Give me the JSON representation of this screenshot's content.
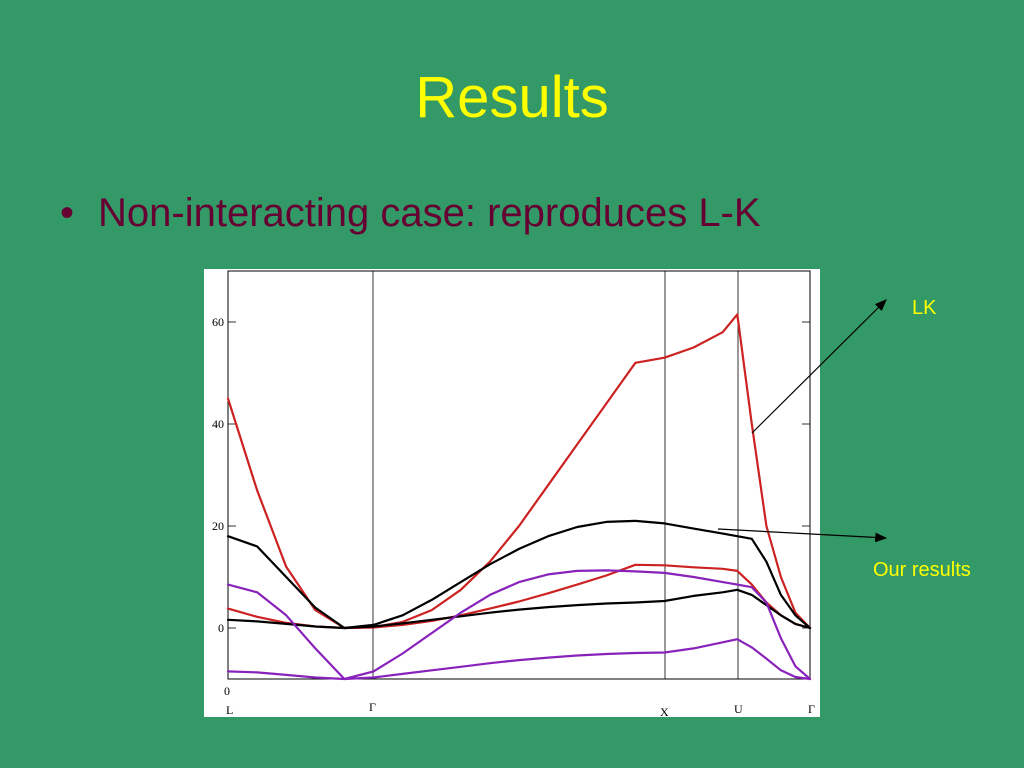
{
  "slide": {
    "title": "Results",
    "bullet_glyph": "•",
    "bullet_text": "Non-interacting case: reproduces L-K",
    "annotation_lk": "LK",
    "annotation_our": "Our results"
  },
  "chart_data": {
    "type": "line",
    "title": "",
    "xlabel": "",
    "ylabel": "",
    "xlim": [
      0,
      1
    ],
    "ylim": [
      -10,
      70
    ],
    "grid": false,
    "y_ticks": [
      0,
      20,
      40,
      60
    ],
    "extra_axis_label": "0",
    "x_point_labels": [
      "L",
      "Γ",
      "X",
      "U",
      "Γ"
    ],
    "series": [
      {
        "color": "#cc2222",
        "x": [
          0,
          0.05,
          0.1,
          0.15,
          0.2,
          0.25,
          0.3,
          0.35,
          0.4,
          0.45,
          0.5,
          0.55,
          0.6,
          0.65,
          0.7,
          0.75,
          0.8,
          0.85,
          0.875,
          0.9,
          0.925,
          0.95,
          0.975,
          1
        ],
        "y": [
          45,
          27,
          12,
          3.5,
          0,
          0.2,
          1.2,
          3.5,
          7.5,
          13,
          20,
          28,
          36,
          44,
          52,
          53,
          55,
          58,
          61.5,
          40,
          20,
          10,
          3,
          0
        ]
      },
      {
        "color": "#cc2222",
        "x": [
          0,
          0.05,
          0.1,
          0.15,
          0.2,
          0.25,
          0.3,
          0.35,
          0.4,
          0.45,
          0.5,
          0.55,
          0.6,
          0.65,
          0.7,
          0.75,
          0.8,
          0.85,
          0.875,
          0.9,
          0.925,
          0.95,
          0.975,
          1
        ],
        "y": [
          3.8,
          2.2,
          1,
          0.3,
          0,
          0.1,
          0.6,
          1.4,
          2.5,
          3.8,
          5.2,
          6.8,
          8.5,
          10.3,
          12.4,
          12.3,
          11.9,
          11.6,
          11.2,
          8.5,
          5,
          2.5,
          0.8,
          0
        ]
      },
      {
        "color": "#000000",
        "x": [
          0,
          0.05,
          0.1,
          0.15,
          0.2,
          0.25,
          0.3,
          0.35,
          0.4,
          0.45,
          0.5,
          0.55,
          0.6,
          0.65,
          0.7,
          0.75,
          0.8,
          0.85,
          0.875,
          0.9,
          0.925,
          0.95,
          0.975,
          1
        ],
        "y": [
          18,
          16,
          10,
          4,
          0,
          0.6,
          2.5,
          5.5,
          9,
          12.5,
          15.5,
          18,
          19.8,
          20.8,
          21,
          20.5,
          19.5,
          18.5,
          18,
          17.5,
          13,
          6.5,
          2.5,
          0
        ]
      },
      {
        "color": "#000000",
        "x": [
          0,
          0.05,
          0.1,
          0.15,
          0.2,
          0.25,
          0.3,
          0.35,
          0.4,
          0.45,
          0.5,
          0.55,
          0.6,
          0.65,
          0.7,
          0.75,
          0.8,
          0.85,
          0.875,
          0.9,
          0.925,
          0.95,
          0.975,
          1
        ],
        "y": [
          1.6,
          1.3,
          0.8,
          0.3,
          0,
          0.3,
          0.9,
          1.6,
          2.3,
          3,
          3.6,
          4.1,
          4.5,
          4.8,
          5,
          5.3,
          6.3,
          7,
          7.5,
          6.5,
          4.5,
          2.5,
          0.8,
          0
        ]
      },
      {
        "color": "#8822bb",
        "x": [
          0,
          0.05,
          0.1,
          0.15,
          0.2,
          0.25,
          0.3,
          0.35,
          0.4,
          0.45,
          0.5,
          0.55,
          0.6,
          0.65,
          0.7,
          0.75,
          0.8,
          0.85,
          0.875,
          0.9,
          0.925,
          0.95,
          0.975,
          1
        ],
        "y": [
          8.5,
          7,
          2.5,
          -4,
          -10,
          -8.5,
          -5,
          -1,
          3,
          6.5,
          9,
          10.5,
          11.2,
          11.3,
          11.1,
          10.8,
          10,
          9,
          8.5,
          8,
          5,
          -2,
          -7.5,
          -10
        ]
      },
      {
        "color": "#8822bb",
        "x": [
          0,
          0.05,
          0.1,
          0.15,
          0.2,
          0.25,
          0.3,
          0.35,
          0.4,
          0.45,
          0.5,
          0.55,
          0.6,
          0.65,
          0.7,
          0.75,
          0.8,
          0.85,
          0.875,
          0.9,
          0.925,
          0.95,
          0.975,
          1
        ],
        "y": [
          -8.5,
          -8.7,
          -9.2,
          -9.7,
          -10,
          -9.7,
          -9,
          -8.3,
          -7.6,
          -6.9,
          -6.3,
          -5.8,
          -5.4,
          -5.1,
          -4.9,
          -4.8,
          -4,
          -2.8,
          -2.2,
          -3.8,
          -6,
          -8.3,
          -9.6,
          -10
        ]
      }
    ]
  }
}
